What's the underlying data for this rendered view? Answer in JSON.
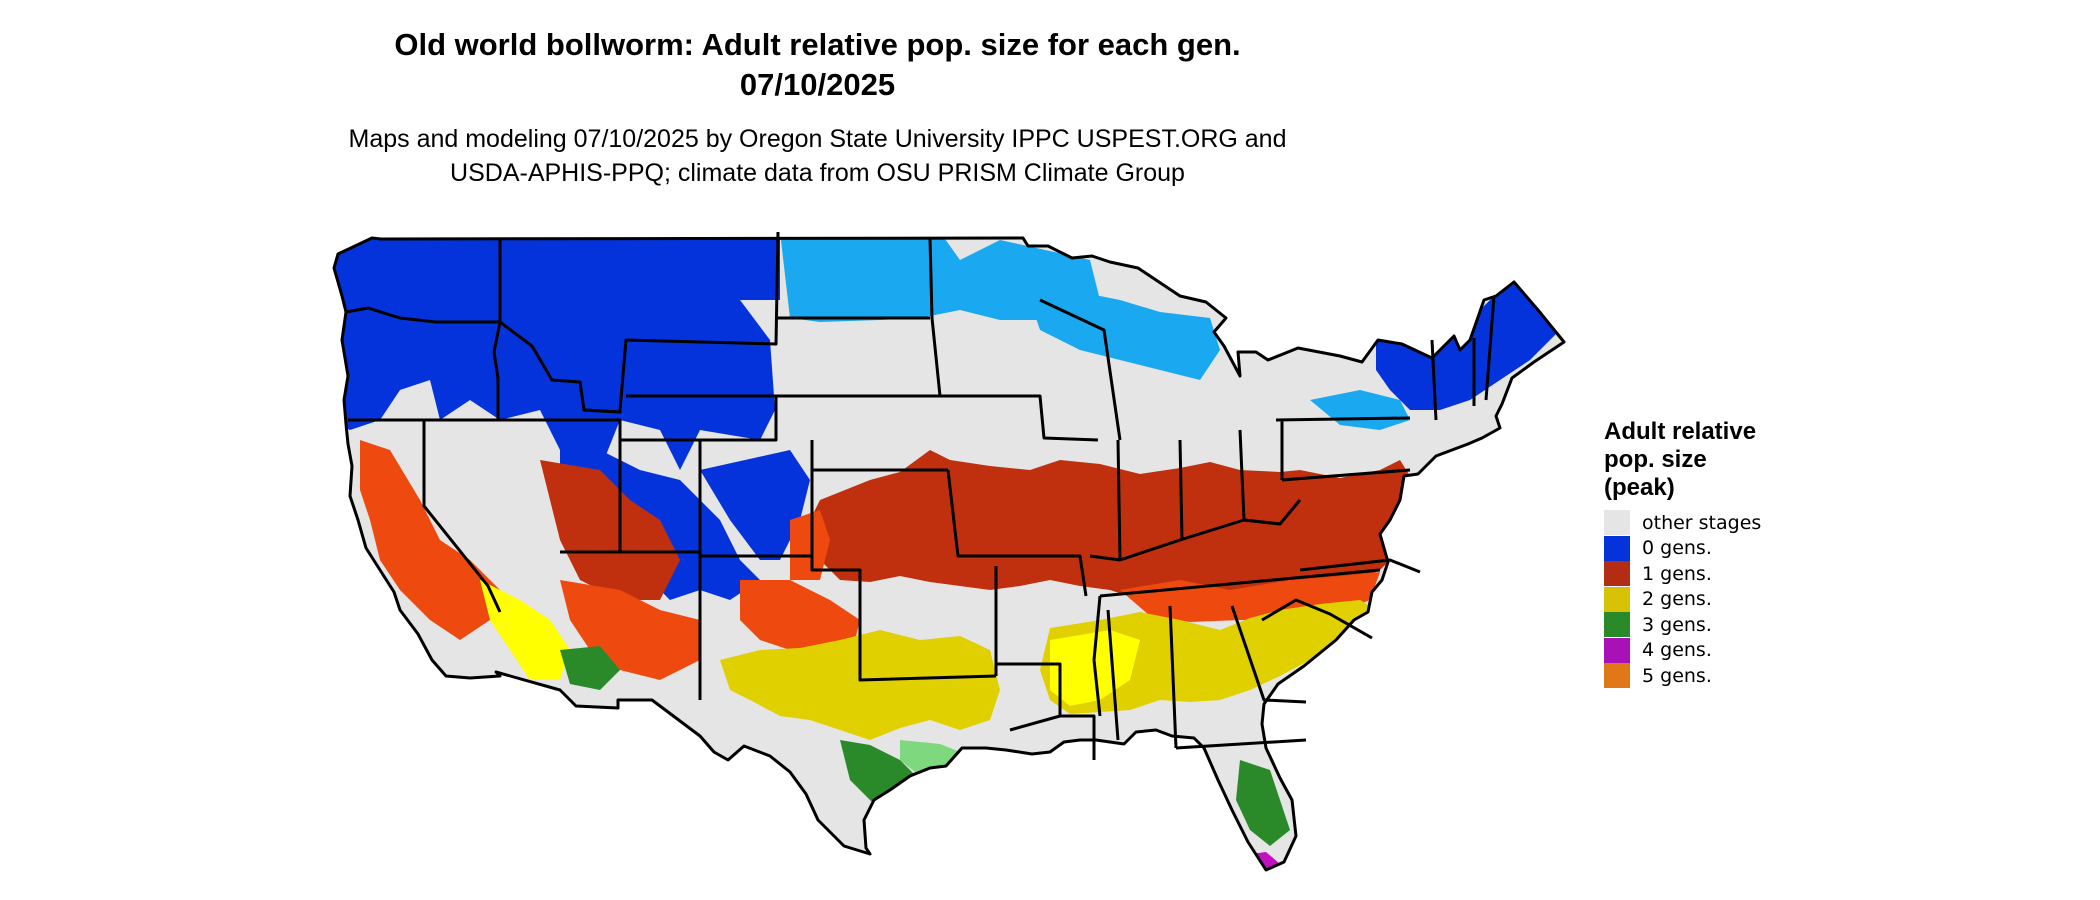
{
  "title_line1": "Old world bollworm: Adult relative pop. size for each gen.",
  "title_line2": "07/10/2025",
  "subtitle_line1": "Maps and modeling 07/10/2025 by Oregon State University IPPC USPEST.ORG and",
  "subtitle_line2": "USDA-APHIS-PPQ; climate data from OSU PRISM Climate Group",
  "legend": {
    "title_lines": [
      "Adult relative",
      "pop. size",
      "(peak)"
    ],
    "items": [
      {
        "label": "other stages",
        "color": "#e5e5e5"
      },
      {
        "label": "0 gens.",
        "color": "#0433dc"
      },
      {
        "label": "1 gens.",
        "color": "#b32d14"
      },
      {
        "label": "2 gens.",
        "color": "#d8c207"
      },
      {
        "label": "3 gens.",
        "color": "#2a8a2a"
      },
      {
        "label": "4 gens.",
        "color": "#a711b5"
      },
      {
        "label": "5 gens.",
        "color": "#e07818"
      }
    ]
  },
  "map_colors": {
    "background": "#e5e5e5",
    "zero_dark": "#0433dc",
    "zero_light": "#1aa8f0",
    "one": "#c0300e",
    "one_bright": "#ee4a10",
    "two": "#e0d000",
    "two_bright": "#ffff00",
    "three": "#2a8a2a",
    "three_light": "#7ed87e",
    "four": "#c010c0",
    "border": "#000000"
  }
}
